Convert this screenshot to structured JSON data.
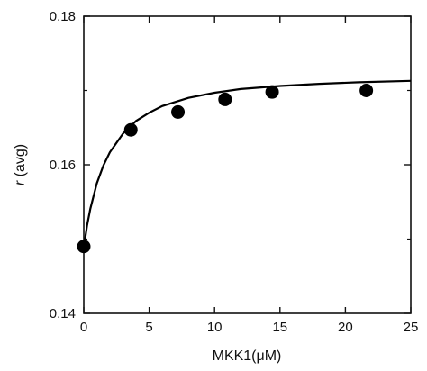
{
  "chart_data": {
    "type": "scatter",
    "title": "",
    "xlabel": "MKK1(μM)",
    "ylabel_var": "r",
    "ylabel_rest": " (avg)",
    "xlim": [
      0,
      25
    ],
    "ylim": [
      0.14,
      0.18
    ],
    "xticks": [
      0,
      5,
      10,
      15,
      20,
      25
    ],
    "xtick_labels": [
      "0",
      "5",
      "10",
      "15",
      "20",
      "25"
    ],
    "yticks": [
      0.14,
      0.16,
      0.18
    ],
    "ytick_labels": [
      "0.14",
      "0.16",
      "0.18"
    ],
    "grid": false,
    "series": [
      {
        "kind": "points",
        "x": [
          0,
          3.6,
          7.2,
          10.8,
          14.4,
          21.6
        ],
        "y": [
          0.149,
          0.1647,
          0.1671,
          0.1688,
          0.1698,
          0.17
        ]
      },
      {
        "kind": "fit-line",
        "x": [
          0,
          0.25,
          0.5,
          1,
          1.5,
          2,
          3,
          4,
          5,
          6,
          8,
          10,
          12,
          15,
          18,
          21,
          25
        ],
        "y": [
          0.1488,
          0.1518,
          0.1541,
          0.1575,
          0.1599,
          0.1617,
          0.1642,
          0.1659,
          0.167,
          0.1679,
          0.169,
          0.1697,
          0.1702,
          0.1706,
          0.1709,
          0.1711,
          0.1713
        ]
      }
    ],
    "colors": {
      "ink": "#000000",
      "axis": "#111111"
    }
  }
}
